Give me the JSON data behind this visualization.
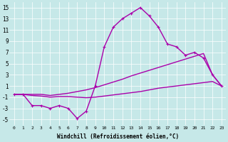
{
  "xlabel": "Windchill (Refroidissement éolien,°C)",
  "bg_color": "#c6e8e8",
  "line_color": "#aa00aa",
  "x_ticks": [
    0,
    1,
    2,
    3,
    4,
    5,
    6,
    7,
    8,
    9,
    10,
    11,
    12,
    13,
    14,
    15,
    16,
    17,
    18,
    19,
    20,
    21,
    22,
    23
  ],
  "ylim": [
    -6,
    16
  ],
  "xlim": [
    -0.5,
    23.5
  ],
  "yticks": [
    -5,
    -3,
    -1,
    1,
    3,
    5,
    7,
    9,
    11,
    13,
    15
  ],
  "line1_x": [
    0,
    1,
    2,
    3,
    4,
    5,
    6,
    7,
    8,
    9,
    10,
    11,
    12,
    13,
    14,
    15,
    16,
    17,
    18,
    19,
    20,
    21,
    22,
    23
  ],
  "line1_y": [
    -0.5,
    -0.5,
    -2.5,
    -2.5,
    -3.0,
    -2.5,
    -3.0,
    -4.8,
    -3.5,
    1.0,
    8.0,
    11.5,
    13.0,
    14.0,
    15.0,
    13.5,
    11.5,
    8.5,
    8.0,
    6.5,
    7.0,
    6.0,
    3.0,
    1.0
  ],
  "line2_x": [
    0,
    1,
    2,
    3,
    4,
    5,
    6,
    7,
    8,
    9,
    10,
    11,
    12,
    13,
    14,
    15,
    16,
    17,
    18,
    19,
    20,
    21,
    22,
    23
  ],
  "line2_y": [
    -0.5,
    -0.5,
    -0.5,
    -0.5,
    -0.7,
    -0.5,
    -0.3,
    0.0,
    0.3,
    0.7,
    1.2,
    1.7,
    2.2,
    2.8,
    3.3,
    3.8,
    4.3,
    4.8,
    5.3,
    5.8,
    6.3,
    6.8,
    3.0,
    1.0
  ],
  "line3_x": [
    0,
    1,
    2,
    3,
    4,
    5,
    6,
    7,
    8,
    9,
    10,
    11,
    12,
    13,
    14,
    15,
    16,
    17,
    18,
    19,
    20,
    21,
    22,
    23
  ],
  "line3_y": [
    -0.5,
    -0.5,
    -0.7,
    -0.8,
    -1.0,
    -0.9,
    -0.9,
    -1.0,
    -1.1,
    -1.0,
    -0.8,
    -0.6,
    -0.4,
    -0.2,
    0.0,
    0.3,
    0.6,
    0.8,
    1.0,
    1.2,
    1.4,
    1.6,
    1.8,
    1.0
  ]
}
